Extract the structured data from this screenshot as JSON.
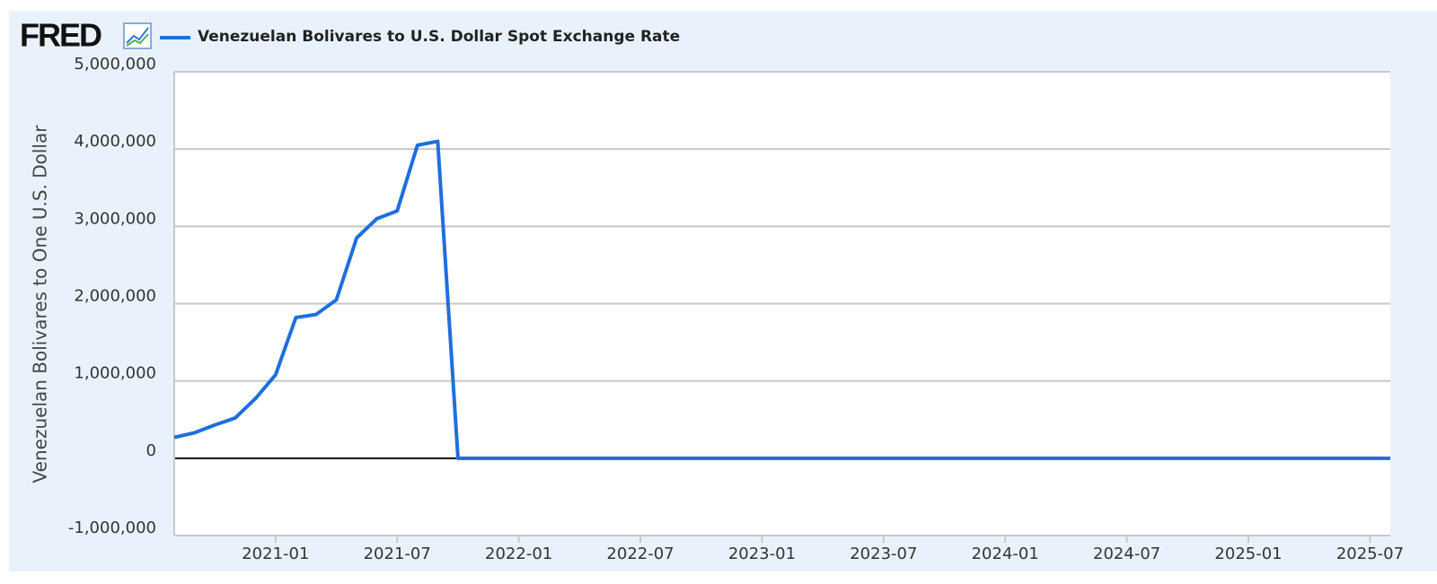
{
  "logo": "FRED",
  "chart_data": {
    "type": "line",
    "y_label": "Venezuelan Bolivares to One U.S. Dollar",
    "x": [
      "2020-08",
      "2020-09",
      "2020-10",
      "2020-11",
      "2020-12",
      "2021-01",
      "2021-02",
      "2021-03",
      "2021-04",
      "2021-05",
      "2021-06",
      "2021-07",
      "2021-08",
      "2021-09",
      "2021-10",
      "2021-11",
      "2021-12",
      "2022-01",
      "2022-04",
      "2022-07",
      "2022-10",
      "2023-01",
      "2023-04",
      "2023-07",
      "2023-10",
      "2024-01",
      "2024-04",
      "2024-07",
      "2024-10",
      "2025-01",
      "2025-04",
      "2025-07",
      "2025-08"
    ],
    "series": [
      {
        "name": "Venezuelan Bolivares to U.S. Dollar Spot Exchange Rate",
        "color": "#1f6fdc",
        "values": [
          270000,
          330000,
          430000,
          520000,
          770000,
          1080000,
          1820000,
          1860000,
          2050000,
          2850000,
          3100000,
          3200000,
          4050000,
          4100000,
          4.18,
          4.5,
          4.6,
          4.6,
          4.5,
          5.8,
          8.3,
          18,
          24.5,
          28.5,
          35,
          36,
          36.3,
          36.5,
          42,
          53,
          80,
          115,
          130
        ]
      }
    ],
    "xlim": [
      "2020-08",
      "2025-08"
    ],
    "xticks": [
      "2021-01",
      "2021-07",
      "2022-01",
      "2022-07",
      "2023-01",
      "2023-07",
      "2024-01",
      "2024-07",
      "2025-01",
      "2025-07"
    ],
    "ylim": [
      -1000000,
      5000000
    ],
    "yticks": [
      {
        "value": -1000000,
        "label": "-1,000,000"
      },
      0,
      {
        "value": 1000000,
        "label": "1,000,000"
      },
      {
        "value": 2000000,
        "label": "2,000,000"
      },
      {
        "value": 3000000,
        "label": "3,000,000"
      },
      {
        "value": 4000000,
        "label": "4,000,000"
      },
      {
        "value": 5000000,
        "label": "5,000,000"
      }
    ],
    "grid": true
  }
}
